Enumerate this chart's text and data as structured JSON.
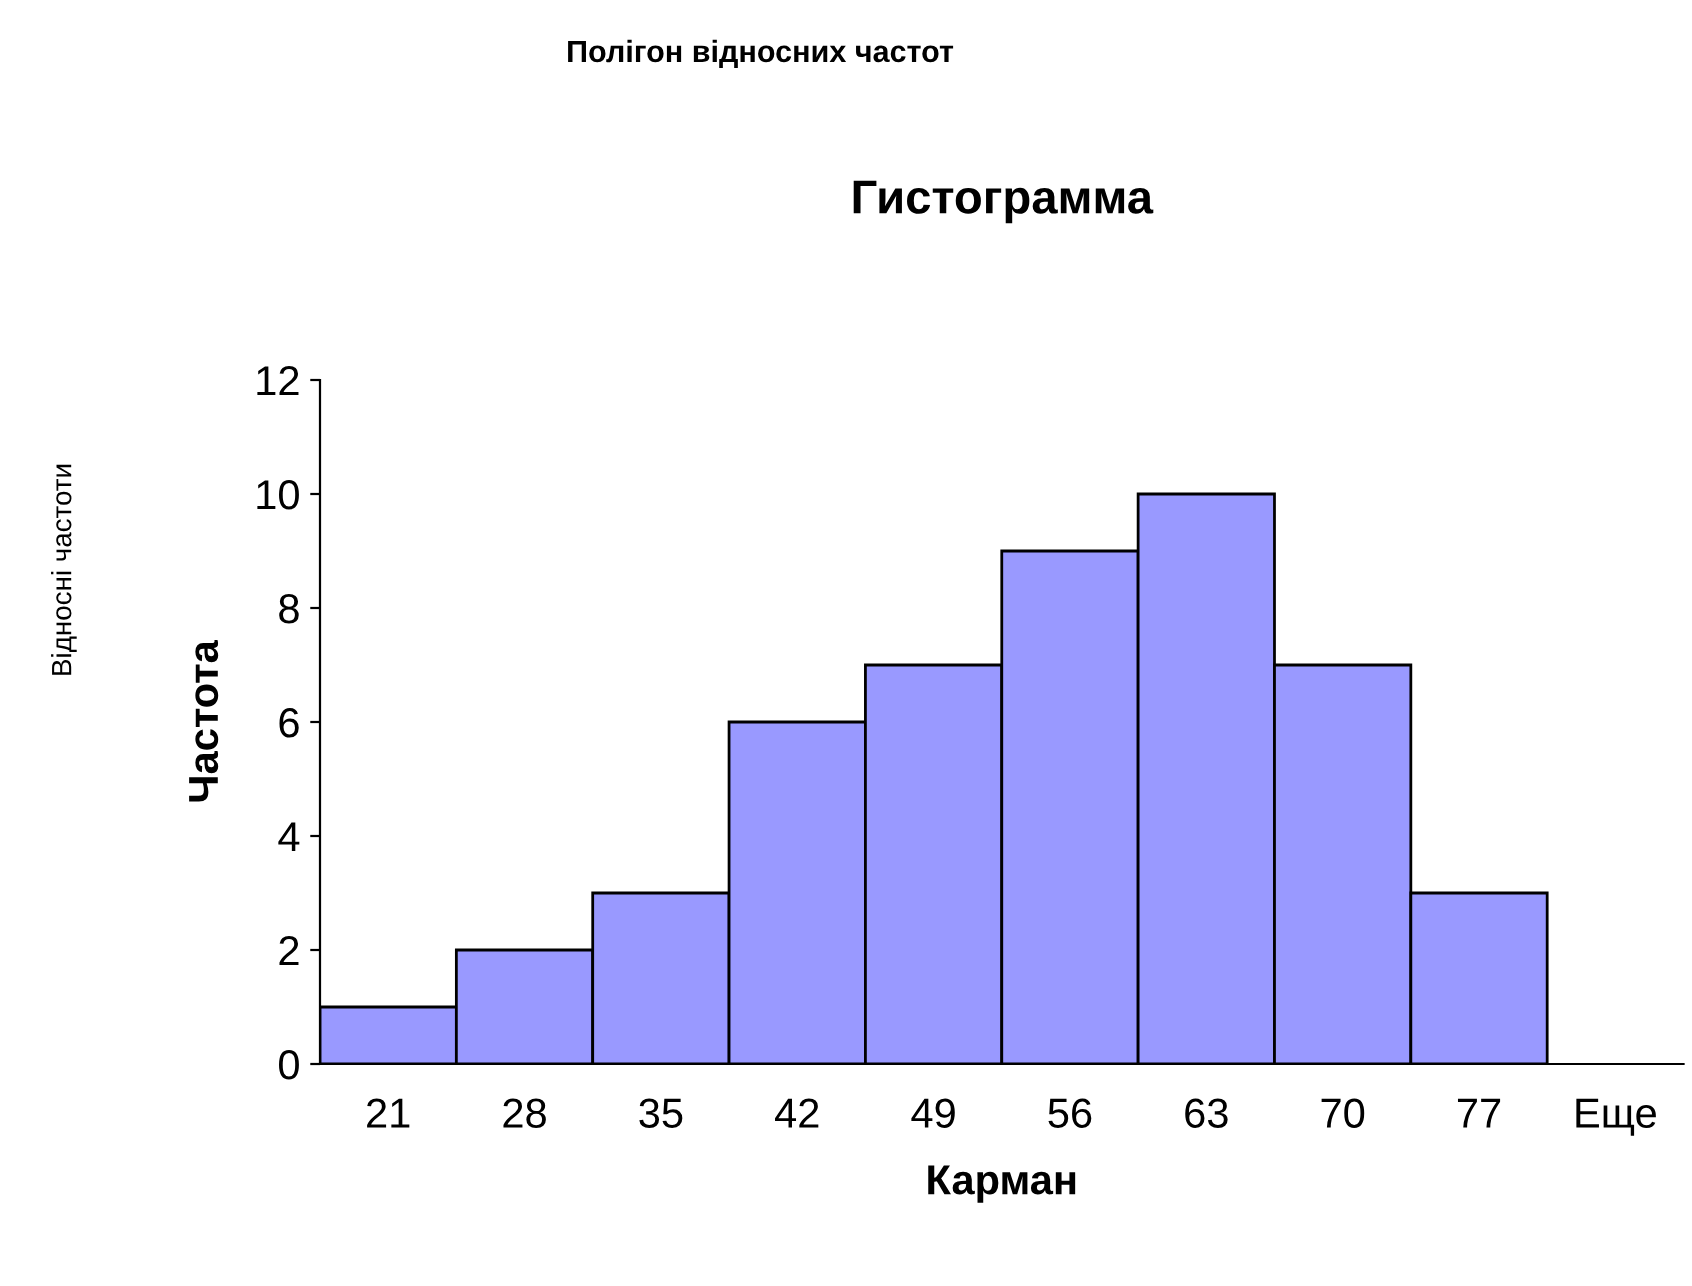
{
  "chart_data": {
    "type": "bar",
    "title": "Гистограмма",
    "xlabel": "Карман",
    "ylabel": "Частота",
    "annotations": [
      "Полігон відносних частот",
      "Відносні частоти"
    ],
    "categories": [
      "21",
      "28",
      "35",
      "42",
      "49",
      "56",
      "63",
      "70",
      "77",
      "Еще"
    ],
    "values": [
      1,
      2,
      3,
      6,
      7,
      9,
      10,
      7,
      3,
      0
    ],
    "color": "#9999ff",
    "ylim": [
      0,
      12
    ],
    "yticks": [
      0,
      2,
      4,
      6,
      8,
      10,
      12
    ],
    "grid": false,
    "legend": false
  }
}
